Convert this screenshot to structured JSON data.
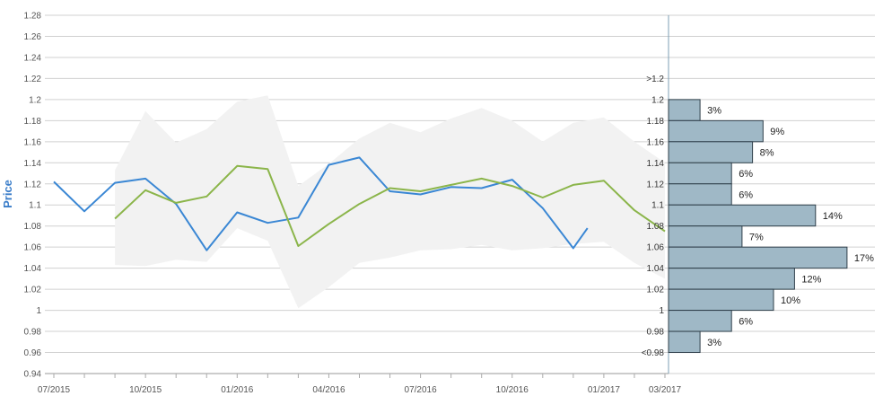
{
  "chart_data": {
    "type": "line",
    "ylabel": "Price",
    "ylim": [
      0.94,
      1.28
    ],
    "y_ticks": [
      "0.94",
      "0.96",
      "0.98",
      "1",
      "1.02",
      "1.04",
      "1.06",
      "1.08",
      "1.1",
      "1.12",
      "1.14",
      "1.16",
      "1.18",
      "1.2",
      "1.22",
      "1.24",
      "1.26",
      "1.28"
    ],
    "x_tick_labels": [
      "07/2015",
      "10/2015",
      "01/2016",
      "04/2016",
      "07/2016",
      "10/2016",
      "01/2017",
      "03/2017"
    ],
    "grid": true,
    "colors": {
      "series_blue": "#3a87d4",
      "series_green": "#8bb54a",
      "band": "#f2f2f2",
      "histogram_fill": "#9fb8c6",
      "histogram_stroke": "#2f3f4a",
      "ylabel": "#3a7dc9"
    },
    "series": [
      {
        "values": [
          [
            "2015-07",
            1.122
          ],
          [
            "2015-08",
            1.094
          ],
          [
            "2015-09",
            1.121
          ],
          [
            "2015-10",
            1.125
          ],
          [
            "2015-11",
            1.101
          ],
          [
            "2015-12",
            1.057
          ],
          [
            "2016-01",
            1.093
          ],
          [
            "2016-02",
            1.083
          ],
          [
            "2016-03",
            1.088
          ],
          [
            "2016-04",
            1.138
          ],
          [
            "2016-05",
            1.145
          ],
          [
            "2016-06",
            1.113
          ],
          [
            "2016-07",
            1.11
          ],
          [
            "2016-08",
            1.117
          ],
          [
            "2016-09",
            1.116
          ],
          [
            "2016-10",
            1.124
          ],
          [
            "2016-11",
            1.097
          ],
          [
            "2016-12",
            1.059
          ],
          [
            "2016-12-15",
            1.078
          ]
        ]
      },
      {
        "values": [
          [
            "2015-09",
            1.087
          ],
          [
            "2015-10",
            1.114
          ],
          [
            "2015-11",
            1.102
          ],
          [
            "2015-12",
            1.108
          ],
          [
            "2016-01",
            1.137
          ],
          [
            "2016-02",
            1.134
          ],
          [
            "2016-03",
            1.061
          ],
          [
            "2016-04",
            1.082
          ],
          [
            "2016-05",
            1.101
          ],
          [
            "2016-06",
            1.116
          ],
          [
            "2016-07",
            1.113
          ],
          [
            "2016-08",
            1.119
          ],
          [
            "2016-09",
            1.125
          ],
          [
            "2016-10",
            1.118
          ],
          [
            "2016-11",
            1.107
          ],
          [
            "2016-12",
            1.119
          ],
          [
            "2017-01",
            1.123
          ],
          [
            "2017-02",
            1.095
          ],
          [
            "2017-03",
            1.075
          ]
        ]
      }
    ],
    "band": {
      "upper": [
        [
          "2015-09",
          1.133
        ],
        [
          "2015-10",
          1.189
        ],
        [
          "2015-11",
          1.159
        ],
        [
          "2015-12",
          1.172
        ],
        [
          "2016-01",
          1.198
        ],
        [
          "2016-02",
          1.204
        ],
        [
          "2016-03",
          1.118
        ],
        [
          "2016-04",
          1.139
        ],
        [
          "2016-05",
          1.163
        ],
        [
          "2016-06",
          1.178
        ],
        [
          "2016-07",
          1.169
        ],
        [
          "2016-08",
          1.182
        ],
        [
          "2016-09",
          1.192
        ],
        [
          "2016-10",
          1.18
        ],
        [
          "2016-11",
          1.16
        ],
        [
          "2016-12",
          1.178
        ],
        [
          "2017-01",
          1.183
        ],
        [
          "2017-02",
          1.16
        ],
        [
          "2017-03",
          1.14
        ]
      ],
      "lower": [
        [
          "2015-09",
          1.043
        ],
        [
          "2015-10",
          1.042
        ],
        [
          "2015-11",
          1.048
        ],
        [
          "2015-12",
          1.046
        ],
        [
          "2016-01",
          1.078
        ],
        [
          "2016-02",
          1.066
        ],
        [
          "2016-03",
          1.002
        ],
        [
          "2016-04",
          1.022
        ],
        [
          "2016-05",
          1.045
        ],
        [
          "2016-06",
          1.05
        ],
        [
          "2016-07",
          1.057
        ],
        [
          "2016-08",
          1.058
        ],
        [
          "2016-09",
          1.062
        ],
        [
          "2016-10",
          1.057
        ],
        [
          "2016-11",
          1.059
        ],
        [
          "2016-12",
          1.063
        ],
        [
          "2017-01",
          1.065
        ],
        [
          "2017-02",
          1.045
        ],
        [
          "2017-03",
          1.03
        ]
      ]
    },
    "histogram": {
      "bins": [
        ">1.2",
        "1.2",
        "1.18",
        "1.16",
        "1.14",
        "1.12",
        "1.1",
        "1.08",
        "1.06",
        "1.04",
        "1.02",
        "1",
        "0.98",
        "<0.98"
      ],
      "bars": [
        {
          "value": 1.2,
          "percent": 3,
          "label": "3%"
        },
        {
          "value": 1.18,
          "percent": 9,
          "label": "9%"
        },
        {
          "value": 1.16,
          "percent": 8,
          "label": "8%"
        },
        {
          "value": 1.14,
          "percent": 6,
          "label": "6%"
        },
        {
          "value": 1.12,
          "percent": 6,
          "label": "6%"
        },
        {
          "value": 1.1,
          "percent": 14,
          "label": "14%"
        },
        {
          "value": 1.08,
          "percent": 7,
          "label": "7%"
        },
        {
          "value": 1.06,
          "percent": 17,
          "label": "17%"
        },
        {
          "value": 1.04,
          "percent": 12,
          "label": "12%"
        },
        {
          "value": 1.02,
          "percent": 10,
          "label": "10%"
        },
        {
          "value": 1.0,
          "percent": 6,
          "label": "6%"
        },
        {
          "value": 0.98,
          "percent": 3,
          "label": "3%"
        }
      ]
    }
  }
}
